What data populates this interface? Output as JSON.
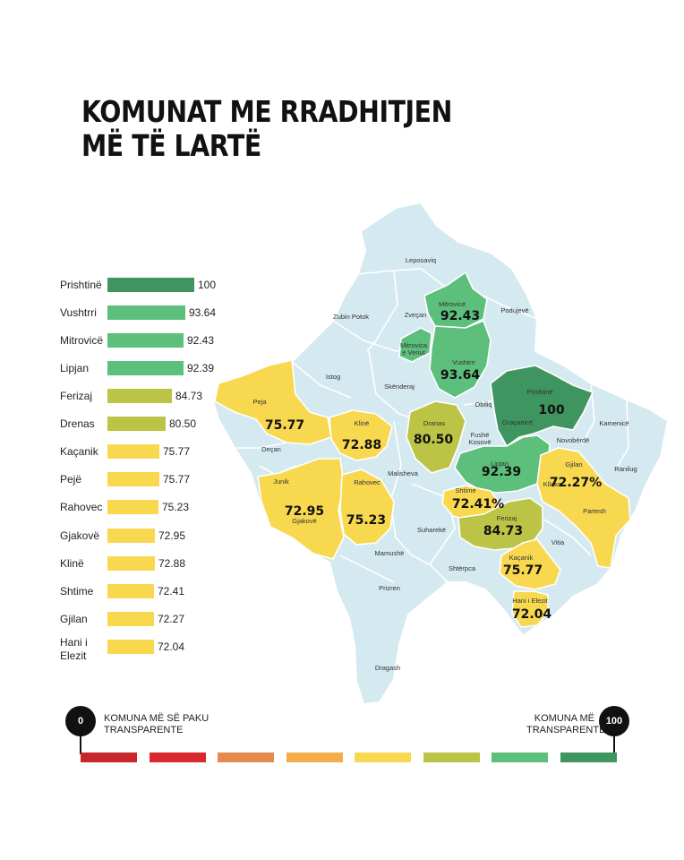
{
  "title": {
    "line1": "KOMUNAT ME RRADHITJEN",
    "line2": "MË TË LARTË"
  },
  "chart_data": {
    "type": "bar",
    "orientation": "horizontal",
    "categories": [
      "Prishtinë",
      "Vushtrri",
      "Mitrovicë",
      "Lipjan",
      "Ferizaj",
      "Drenas",
      "Kaçanik",
      "Pejë",
      "Rahovec",
      "Gjakovë",
      "Klinë",
      "Shtime",
      "Gjilan",
      "Hani i Elezit"
    ],
    "values": [
      100,
      93.64,
      92.43,
      92.39,
      84.73,
      80.5,
      75.77,
      75.77,
      75.23,
      72.95,
      72.88,
      72.41,
      72.27,
      72.04
    ],
    "value_labels": [
      "100",
      "93.64",
      "92.43",
      "92.39",
      "84.73",
      "80.50",
      "75.77",
      "75.77",
      "75.23",
      "72.95",
      "72.88",
      "72.41",
      "72.27",
      "72.04"
    ],
    "bar_colors": [
      "#3f9560",
      "#5cbf7c",
      "#5cbf7c",
      "#5cbf7c",
      "#bcc445",
      "#bcc445",
      "#f8d84f",
      "#f8d84f",
      "#f8d84f",
      "#f8d84f",
      "#f8d84f",
      "#f8d84f",
      "#f8d84f",
      "#f8d84f"
    ]
  },
  "map": {
    "region_labels": [
      {
        "name": "Leposaviq"
      },
      {
        "name": "Zubin Potok"
      },
      {
        "name": "Zveçan"
      },
      {
        "name": "Mitrovicë"
      },
      {
        "name": "Mitrovica e Veriut"
      },
      {
        "name": "Podujevë"
      },
      {
        "name": "Vushtrri"
      },
      {
        "name": "Istog"
      },
      {
        "name": "Skënderaj"
      },
      {
        "name": "Prishtinë"
      },
      {
        "name": "Obiliq"
      },
      {
        "name": "Peja"
      },
      {
        "name": "Klinë"
      },
      {
        "name": "Dranas"
      },
      {
        "name": "Fushë Kosovë"
      },
      {
        "name": "Graçanicë"
      },
      {
        "name": "Kamenicë"
      },
      {
        "name": "Novobërdë"
      },
      {
        "name": "Deçan"
      },
      {
        "name": "Junik"
      },
      {
        "name": "Malisheva"
      },
      {
        "name": "Lipjan"
      },
      {
        "name": "Gjilan"
      },
      {
        "name": "Ranilug"
      },
      {
        "name": "Gjakovë"
      },
      {
        "name": "Rahovec"
      },
      {
        "name": "Shtime"
      },
      {
        "name": "Kllokot"
      },
      {
        "name": "Partesh"
      },
      {
        "name": "Suharekë"
      },
      {
        "name": "Ferizaj"
      },
      {
        "name": "Vitia"
      },
      {
        "name": "Mamushë"
      },
      {
        "name": "Kaçanik"
      },
      {
        "name": "Shtërpca"
      },
      {
        "name": "Prizren"
      },
      {
        "name": "Hani i Elezit"
      },
      {
        "name": "Dragash"
      }
    ],
    "value_labels": [
      {
        "text": "92.43"
      },
      {
        "text": "93.64"
      },
      {
        "text": "100"
      },
      {
        "text": "75.77"
      },
      {
        "text": "72.88"
      },
      {
        "text": "80.50"
      },
      {
        "text": "92.39"
      },
      {
        "text": "72.27%"
      },
      {
        "text": "72.95"
      },
      {
        "text": "75.23"
      },
      {
        "text": "72.41%"
      },
      {
        "text": "84.73"
      },
      {
        "text": "75.77"
      },
      {
        "text": "72.04"
      }
    ],
    "colors": {
      "base": "#d4eaf0",
      "border": "#ffffff",
      "yellow": "#f8d84f",
      "olive": "#bcc445",
      "green": "#5cbf7c",
      "dark_green": "#3f9560"
    }
  },
  "legend": {
    "min_value": "0",
    "max_value": "100",
    "min_label": "KOMUNA MË SË PAKU TRANSPARENTE",
    "max_label": "KOMUNA MË TRANSPARENTE",
    "scale_colors": [
      "#c7262b",
      "#d82a2e",
      "#e58a4e",
      "#f5ad4a",
      "#f8d84f",
      "#bcc445",
      "#5cbf7c",
      "#3f9560"
    ]
  }
}
